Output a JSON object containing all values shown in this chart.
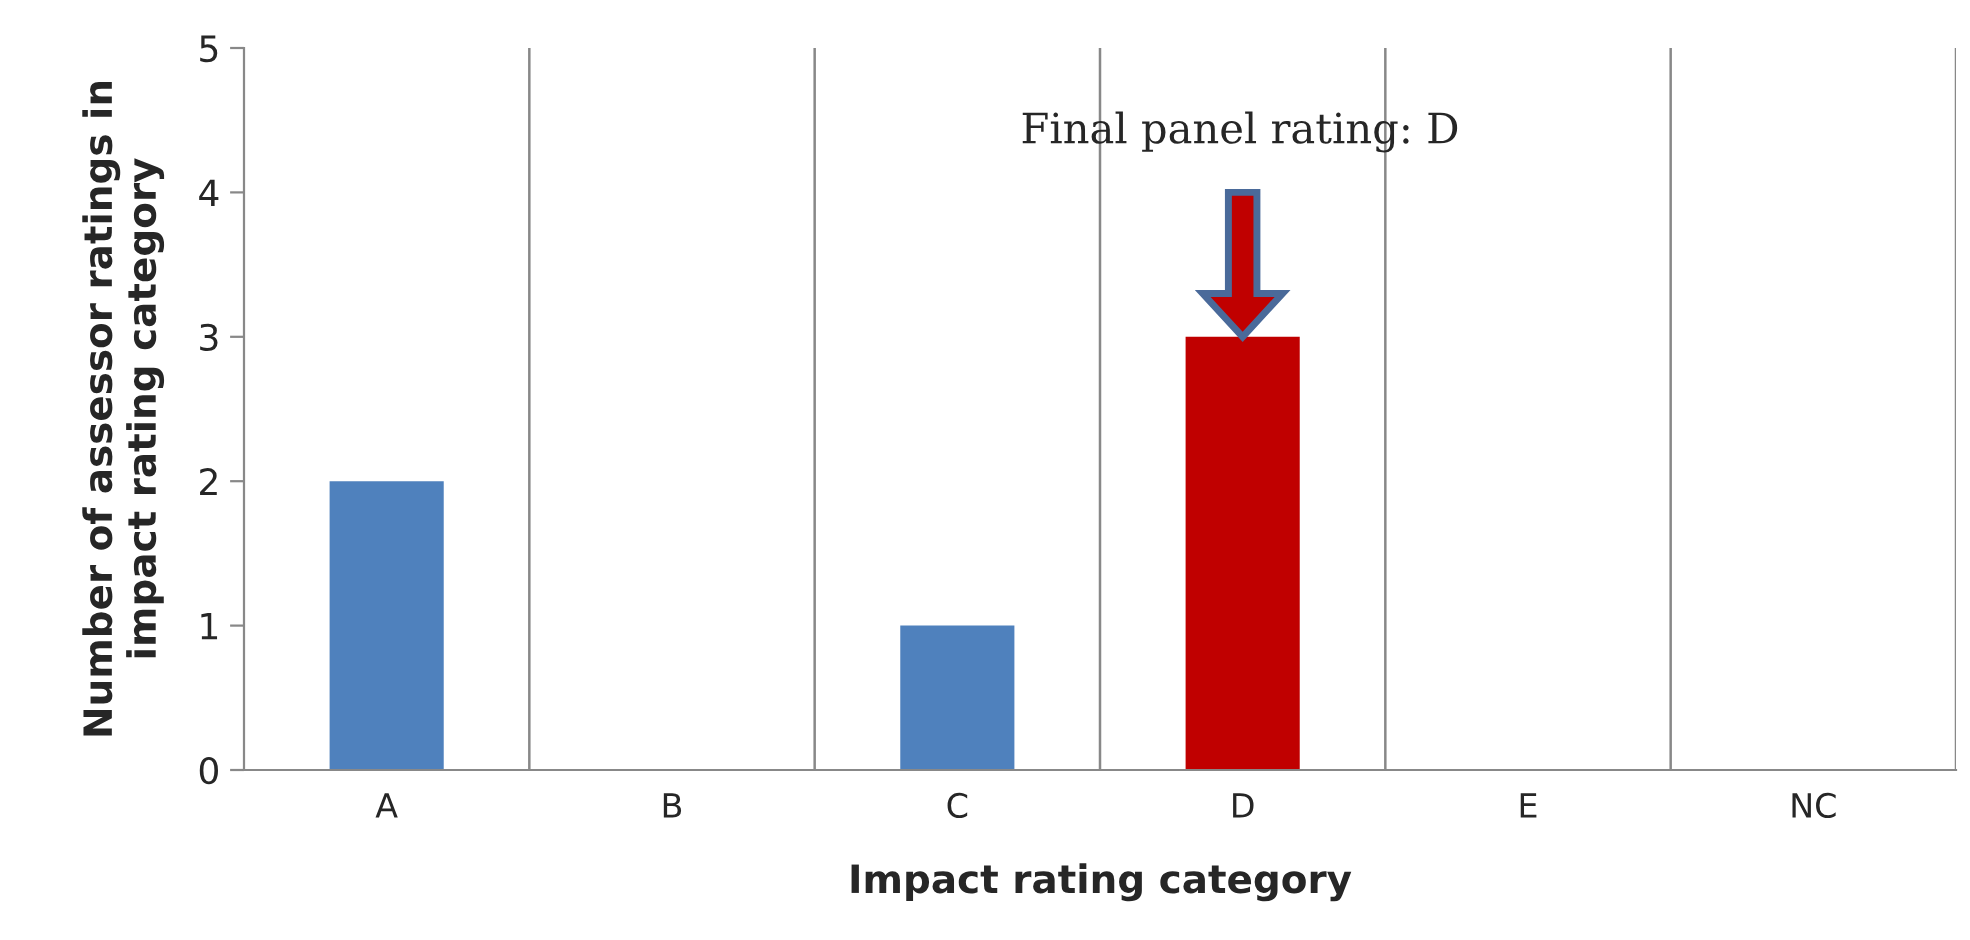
{
  "chart_data": {
    "type": "bar",
    "xlabel": "Impact rating category",
    "ylabel": "Number of assessor ratings in impact rating category",
    "categories": [
      "A",
      "B",
      "C",
      "D",
      "E",
      "NC"
    ],
    "values": [
      2,
      0,
      1,
      3,
      0,
      0
    ],
    "colors": [
      "#4f81bd",
      "#4f81bd",
      "#4f81bd",
      "#c00000",
      "#4f81bd",
      "#4f81bd"
    ],
    "ylim": [
      0,
      5
    ],
    "yticks": [
      0,
      1,
      2,
      3,
      4,
      5
    ],
    "grid": "x",
    "annotations": [
      "Final panel rating: D"
    ]
  }
}
